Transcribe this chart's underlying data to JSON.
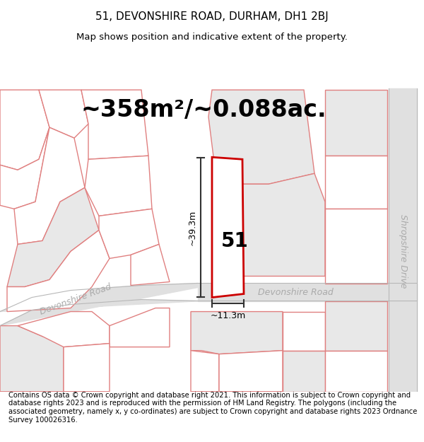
{
  "title_line1": "51, DEVONSHIRE ROAD, DURHAM, DH1 2BJ",
  "title_line2": "Map shows position and indicative extent of the property.",
  "area_text": "~358m²/~0.088ac.",
  "dim_height": "~39.3m",
  "dim_width": "~11.3m",
  "number_label": "51",
  "road_label_diag": "Devonshire Road",
  "road_label_horiz": "Devonshire Road",
  "road_label_vert": "Shropshire Drive",
  "footer_text": "Contains OS data © Crown copyright and database right 2021. This information is subject to Crown copyright and database rights 2023 and is reproduced with the permission of HM Land Registry. The polygons (including the associated geometry, namely x, y co-ordinates) are subject to Crown copyright and database rights 2023 Ordnance Survey 100026316.",
  "bg_color": "#ffffff",
  "map_bg": "#f7f7f7",
  "plot_border_color": "#cc0000",
  "parcel_edge_color": "#e08080",
  "parcel_fill_white": "#ffffff",
  "parcel_fill_gray": "#e8e8e8",
  "road_fill": "#e0e0e0",
  "dim_line_color": "#333333",
  "title_fontsize": 11,
  "subtitle_fontsize": 9.5,
  "area_fontsize": 24,
  "road_label_fontsize": 9,
  "footer_fontsize": 7.2
}
